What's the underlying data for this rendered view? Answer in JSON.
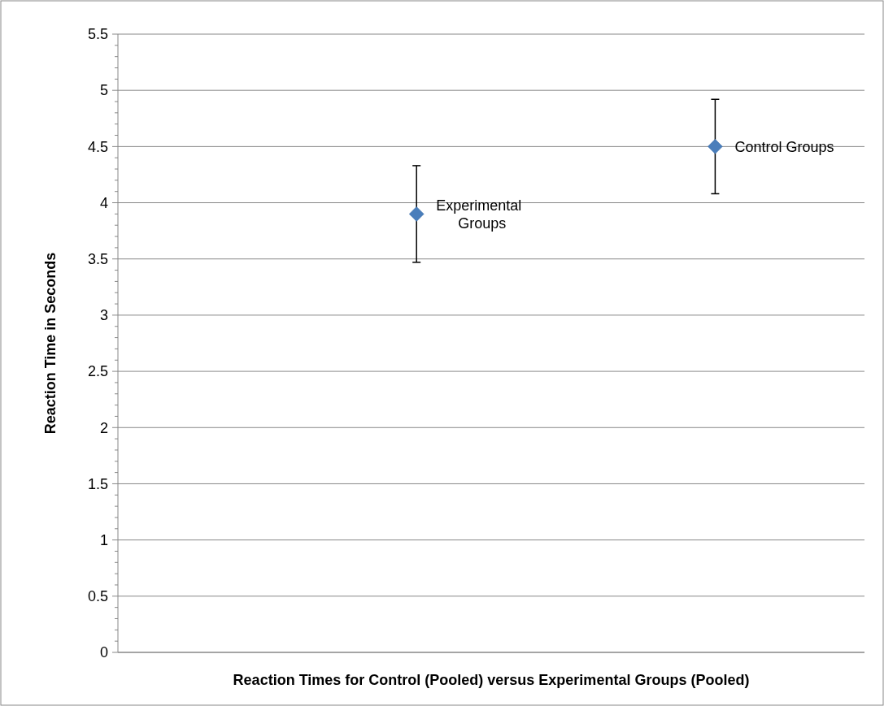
{
  "chart_data": {
    "type": "scatter",
    "xlabel": "Reaction Times for Control (Pooled) versus Experimental Groups (Pooled)",
    "ylabel": "Reaction Time in Seconds",
    "categories": [
      null,
      null,
      null,
      null,
      null,
      null
    ],
    "ylim": [
      0,
      5.5
    ],
    "yticks": [
      0,
      0.5,
      1,
      1.5,
      2,
      2.5,
      3,
      3.5,
      4,
      4.5,
      5,
      5.5
    ],
    "values": [
      null,
      null,
      3.9,
      null,
      4.5,
      null
    ],
    "errors": [
      null,
      null,
      0.43,
      null,
      0.42,
      null
    ],
    "color": "#4a7ebb",
    "marker": "diamond",
    "grid": "y",
    "tick_labels": "y",
    "annotations": [
      "Experimental Groups",
      "Control Groups"
    ]
  }
}
